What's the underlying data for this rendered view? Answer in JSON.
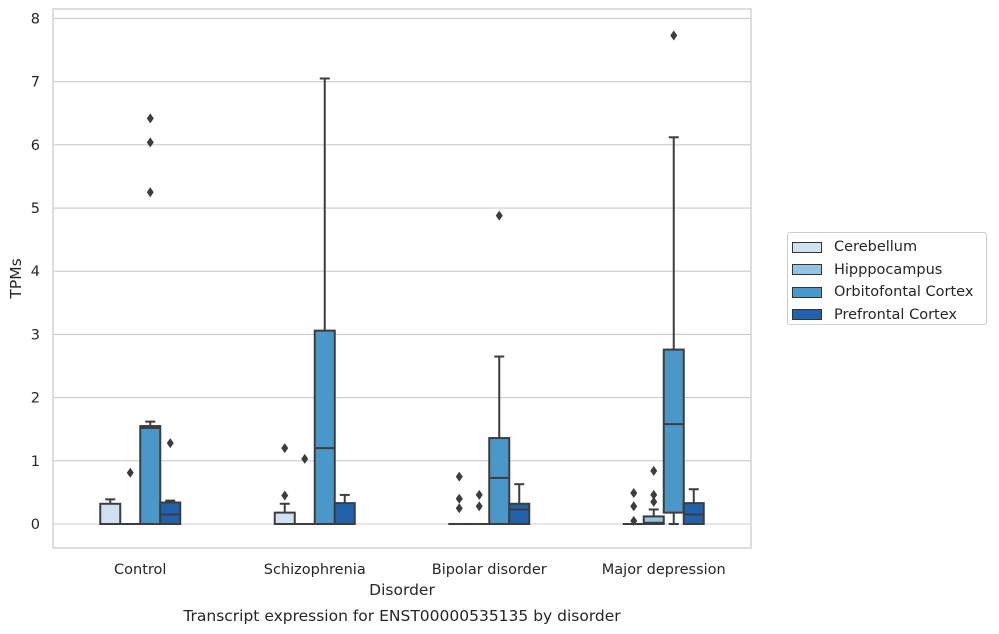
{
  "caption": "Transcript expression for ENST00000535135 by disorder",
  "chart_data": {
    "type": "box",
    "xlabel": "Disorder",
    "ylabel": "TPMs",
    "ylim": [
      -0.38,
      8.15
    ],
    "yticks": [
      0,
      1,
      2,
      3,
      4,
      5,
      6,
      7,
      8
    ],
    "grid": "horizontal",
    "legend_position": "right",
    "categories": [
      "Control",
      "Schizophrenia",
      "Bipolar disorder",
      "Major depression"
    ],
    "series": [
      {
        "name": "Cerebellum",
        "color": "#d0e1f2",
        "boxes": [
          {
            "q1": 0,
            "median": 0,
            "q3": 0.32,
            "whisker_low": 0,
            "whisker_high": 0.39,
            "outliers": []
          },
          {
            "q1": 0,
            "median": 0,
            "q3": 0.18,
            "whisker_low": 0,
            "whisker_high": 0.32,
            "outliers": [
              0.45,
              1.2
            ]
          },
          {
            "q1": 0,
            "median": 0,
            "q3": 0,
            "whisker_low": 0,
            "whisker_high": 0,
            "outliers": [
              0.25,
              0.4,
              0.75
            ]
          },
          {
            "q1": 0,
            "median": 0,
            "q3": 0,
            "whisker_low": 0,
            "whisker_high": 0,
            "outliers": [
              0.05,
              0.28,
              0.49
            ]
          }
        ]
      },
      {
        "name": "Hipppocampus",
        "color": "#94c4df",
        "boxes": [
          {
            "q1": 0,
            "median": 0,
            "q3": 0,
            "whisker_low": 0,
            "whisker_high": 0,
            "outliers": [
              0.81
            ]
          },
          {
            "q1": 0,
            "median": 0,
            "q3": 0,
            "whisker_low": 0,
            "whisker_high": 0,
            "outliers": [
              1.03
            ]
          },
          {
            "q1": 0,
            "median": 0,
            "q3": 0,
            "whisker_low": 0,
            "whisker_high": 0,
            "outliers": [
              0.28,
              0.46
            ]
          },
          {
            "q1": 0,
            "median": 0.02,
            "q3": 0.12,
            "whisker_low": 0,
            "whisker_high": 0.23,
            "outliers": [
              0.35,
              0.46,
              0.84
            ]
          }
        ]
      },
      {
        "name": "Orbitofontal Cortex",
        "color": "#4a98c9",
        "boxes": [
          {
            "q1": 0,
            "median": 1.52,
            "q3": 1.55,
            "whisker_low": 0,
            "whisker_high": 1.62,
            "outliers": [
              5.25,
              6.04,
              6.42
            ]
          },
          {
            "q1": 0,
            "median": 1.2,
            "q3": 3.06,
            "whisker_low": 0,
            "whisker_high": 7.05,
            "outliers": []
          },
          {
            "q1": 0,
            "median": 0.73,
            "q3": 1.36,
            "whisker_low": 0,
            "whisker_high": 2.65,
            "outliers": [
              4.88
            ]
          },
          {
            "q1": 0.18,
            "median": 1.58,
            "q3": 2.76,
            "whisker_low": 0,
            "whisker_high": 6.12,
            "outliers": [
              7.73
            ]
          }
        ]
      },
      {
        "name": "Prefrontal Cortex",
        "color": "#2163aa",
        "boxes": [
          {
            "q1": 0,
            "median": 0.15,
            "q3": 0.34,
            "whisker_low": 0,
            "whisker_high": 0.37,
            "outliers": [
              1.28
            ]
          },
          {
            "q1": 0,
            "median": 0,
            "q3": 0.33,
            "whisker_low": 0,
            "whisker_high": 0.46,
            "outliers": []
          },
          {
            "q1": 0,
            "median": 0.23,
            "q3": 0.32,
            "whisker_low": 0,
            "whisker_high": 0.63,
            "outliers": []
          },
          {
            "q1": 0,
            "median": 0.15,
            "q3": 0.33,
            "whisker_low": 0,
            "whisker_high": 0.55,
            "outliers": []
          }
        ]
      }
    ]
  }
}
